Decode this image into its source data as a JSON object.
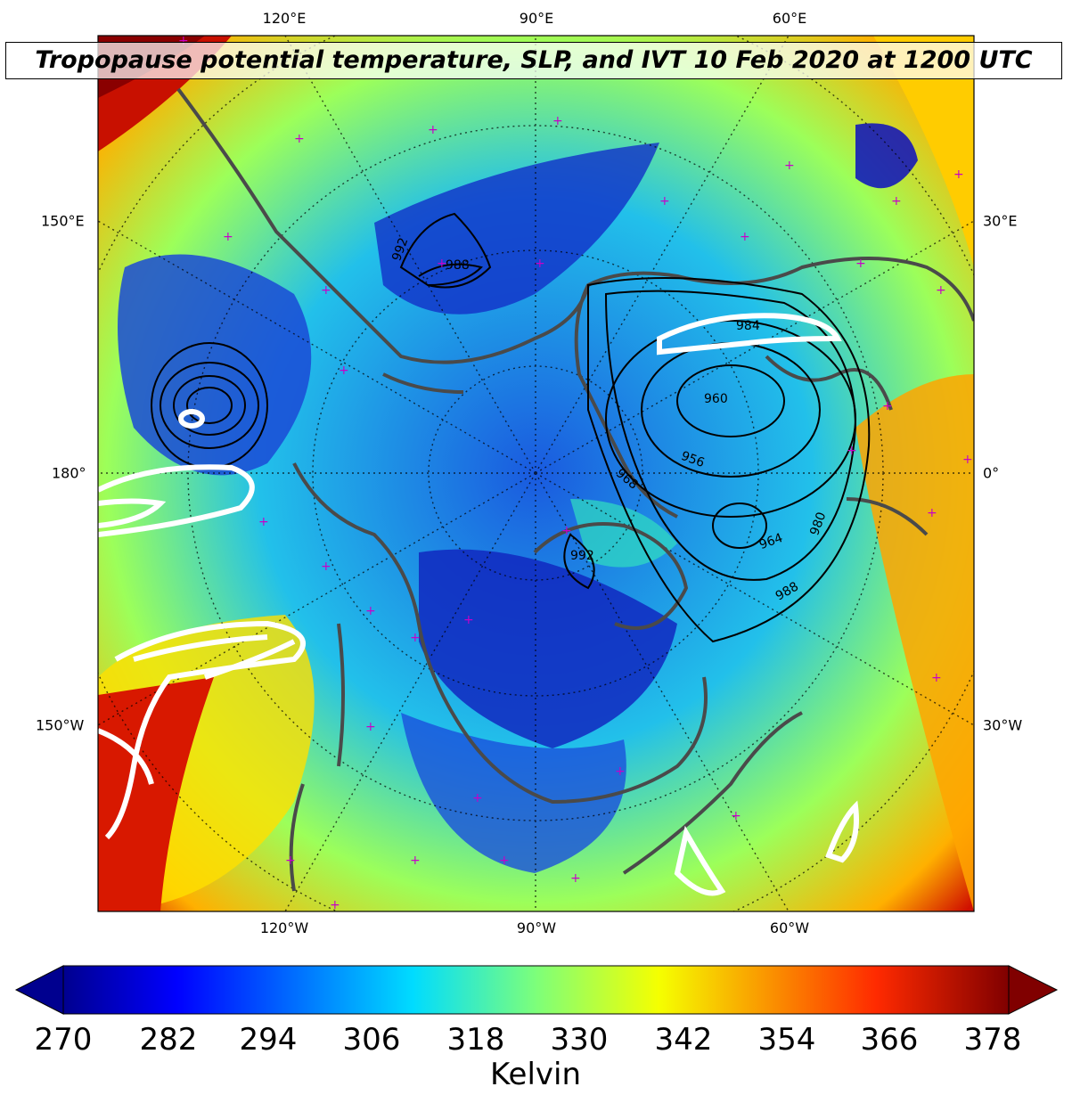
{
  "title": "Tropopause potential temperature, SLP, and IVT 10 Feb 2020 at 1200 UTC",
  "longitude_labels_top": [
    "120°E",
    "90°E",
    "60°E"
  ],
  "longitude_labels_bottom": [
    "120°W",
    "90°W",
    "60°W"
  ],
  "latitude_labels_left": [
    "150°E",
    "180°",
    "150°W"
  ],
  "latitude_labels_right": [
    "30°E",
    "0°",
    "30°W"
  ],
  "slp_contour_labels": [
    "992",
    "988",
    "984",
    "960",
    "956",
    "964",
    "968",
    "980",
    "988",
    "992"
  ],
  "colorbar": {
    "ticks": [
      "270",
      "282",
      "294",
      "306",
      "318",
      "330",
      "342",
      "354",
      "366",
      "378"
    ],
    "label": "Kelvin",
    "min": 270,
    "max": 378,
    "colormap": "jet",
    "extend": "both"
  },
  "colors": {
    "trop_cold": "#00008f",
    "trop_mid": "#22dbe0",
    "trop_warm": "#c8ff30",
    "trop_hot": "#ff2a00",
    "slp_contour": "#000000",
    "ivt_contour": "#ffffff",
    "coastline": "#4a4a4a",
    "station_marker": "#c800c8"
  }
}
